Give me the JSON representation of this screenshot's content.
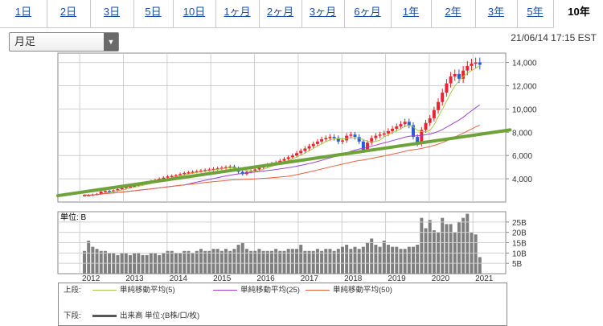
{
  "tabs": [
    {
      "label": "1日",
      "active": false
    },
    {
      "label": "2日",
      "active": false
    },
    {
      "label": "3日",
      "active": false
    },
    {
      "label": "5日",
      "active": false
    },
    {
      "label": "10日",
      "active": false
    },
    {
      "label": "1ヶ月",
      "active": false
    },
    {
      "label": "2ヶ月",
      "active": false
    },
    {
      "label": "3ヶ月",
      "active": false
    },
    {
      "label": "6ヶ月",
      "active": false
    },
    {
      "label": "1年",
      "active": false
    },
    {
      "label": "2年",
      "active": false
    },
    {
      "label": "3年",
      "active": false
    },
    {
      "label": "5年",
      "active": false
    },
    {
      "label": "10年",
      "active": true
    }
  ],
  "period_select": {
    "value": "月足"
  },
  "timestamp": "21/06/14 17:15 EST",
  "volume_unit": "単位: B",
  "legend": {
    "upper_label": "上段:",
    "lower_label": "下段:",
    "ma": [
      {
        "label": "単純移動平均(5)",
        "color": "#a7c84a"
      },
      {
        "label": "単純移動平均(25)",
        "color": "#9a44d1"
      },
      {
        "label": "単純移動平均(50)",
        "color": "#e8623e"
      }
    ],
    "volume_label": "出来高 単位:(B株/口/枚)"
  },
  "chart_data": [
    {
      "type": "candlestick",
      "title": "",
      "x_labels": [
        "2012",
        "2013",
        "2014",
        "2015",
        "2016",
        "2017",
        "2018",
        "2019",
        "2020",
        "2021"
      ],
      "x_range": [
        2011.5,
        2021.75
      ],
      "ylim": [
        2000,
        14800
      ],
      "yticks": [
        4000,
        6000,
        8000,
        10000,
        12000,
        14000
      ],
      "grid": true,
      "close": [
        2600,
        2580,
        2650,
        2700,
        2900,
        2950,
        2900,
        3000,
        3100,
        3200,
        3300,
        3350,
        3400,
        3500,
        3600,
        3700,
        3800,
        3900,
        4000,
        4100,
        4200,
        4250,
        4300,
        4400,
        4500,
        4550,
        4600,
        4650,
        4700,
        4750,
        4800,
        4850,
        4900,
        4950,
        5000,
        5050,
        4900,
        4600,
        4400,
        4600,
        4700,
        4800,
        4950,
        5100,
        5200,
        5300,
        5400,
        5550,
        5700,
        5850,
        6000,
        6200,
        6400,
        6600,
        6800,
        7000,
        7200,
        7400,
        7500,
        7600,
        7500,
        7200,
        7300,
        7700,
        7800,
        7600,
        7200,
        6500,
        7100,
        7500,
        7700,
        7800,
        7900,
        8100,
        8300,
        8500,
        8700,
        8900,
        8600,
        7600,
        7000,
        8200,
        8800,
        9200,
        9900,
        10600,
        11400,
        12200,
        12800,
        13000,
        12600,
        13300,
        13700,
        13900,
        14000,
        13800
      ],
      "moving_averages": {
        "ma5_last": 13600,
        "ma25_last": 10500,
        "ma50_last": 8900
      },
      "trendline": {
        "from": [
          2011.5,
          2550
        ],
        "to": [
          2021.85,
          8200
        ],
        "color": "#6ea23a"
      }
    },
    {
      "type": "bar",
      "title": "",
      "ylabel": "単位: B",
      "yticks": [
        5,
        10,
        15,
        20,
        25
      ],
      "ytick_labels": [
        "5B",
        "10B",
        "15B",
        "20B",
        "25B"
      ],
      "ylim": [
        0,
        30
      ],
      "values": [
        11,
        16,
        13,
        12,
        11,
        11,
        10,
        10,
        9,
        10,
        10,
        9,
        10,
        10,
        9,
        9,
        10,
        10,
        9,
        10,
        11,
        11,
        10,
        10,
        11,
        11,
        10,
        11,
        12,
        11,
        11,
        12,
        12,
        11,
        12,
        11,
        12,
        14,
        15,
        12,
        11,
        11,
        12,
        11,
        11,
        11,
        12,
        11,
        11,
        12,
        12,
        12,
        14,
        11,
        11,
        11,
        12,
        11,
        12,
        12,
        11,
        12,
        13,
        14,
        12,
        13,
        12,
        13,
        15,
        17,
        14,
        13,
        16,
        14,
        13,
        13,
        12,
        12,
        13,
        13,
        14,
        27,
        22,
        26,
        21,
        20,
        27,
        24,
        24,
        20,
        25,
        27,
        29,
        20,
        19,
        8
      ]
    }
  ]
}
